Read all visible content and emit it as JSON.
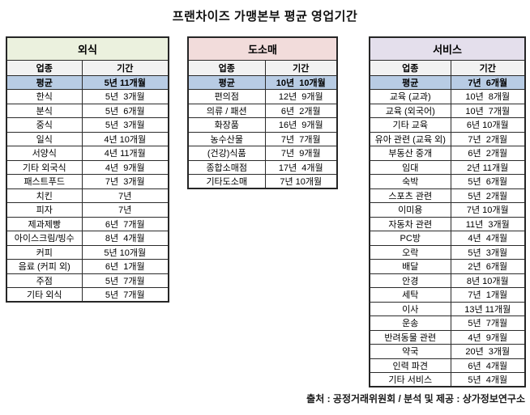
{
  "title": "프랜차이즈 가맹본부 평균 영업기간",
  "source": "출처 : 공정거래위원회 / 분석 및 제공 : 상가정보연구소",
  "colors": {
    "dining_header_bg": "#EBF1DE",
    "retail_header_bg": "#F2DCDB",
    "service_header_bg": "#E4DFEC",
    "average_row_bg": "#B8CCE4",
    "column_header_bg": "#F2F2F2",
    "border": "#262626"
  },
  "tables": [
    {
      "id": "dining",
      "title": "외식",
      "header_bg": "#EBF1DE",
      "columns": [
        "업종",
        "기간"
      ],
      "rows": [
        {
          "label": "평균",
          "period": "5년 11개월",
          "average": true
        },
        {
          "label": "한식",
          "period": "5년  3개월"
        },
        {
          "label": "분식",
          "period": "5년  6개월"
        },
        {
          "label": "중식",
          "period": "5년  3개월"
        },
        {
          "label": "일식",
          "period": "4년 10개월"
        },
        {
          "label": "서양식",
          "period": "4년 11개월"
        },
        {
          "label": "기타 외국식",
          "period": "4년  9개월"
        },
        {
          "label": "패스트푸드",
          "period": "7년  3개월"
        },
        {
          "label": "치킨",
          "period": "7년"
        },
        {
          "label": "피자",
          "period": "7년"
        },
        {
          "label": "제과제빵",
          "period": "6년  7개월"
        },
        {
          "label": "아이스크림/빙수",
          "period": "8년  4개월"
        },
        {
          "label": "커피",
          "period": "5년 10개월"
        },
        {
          "label": "음료 (커피 외)",
          "period": "6년  1개월"
        },
        {
          "label": "주점",
          "period": "5년  7개월"
        },
        {
          "label": "기타 외식",
          "period": "5년  7개월"
        }
      ]
    },
    {
      "id": "wholesale-retail",
      "title": "도소매",
      "header_bg": "#F2DCDB",
      "columns": [
        "업종",
        "기간"
      ],
      "rows": [
        {
          "label": "평균",
          "period": "10년  10개월",
          "average": true
        },
        {
          "label": "편의점",
          "period": "12년  9개월"
        },
        {
          "label": "의류 / 패션",
          "period": "6년  2개월"
        },
        {
          "label": "화장품",
          "period": "16년  9개월"
        },
        {
          "label": "농수산물",
          "period": "7년  7개월"
        },
        {
          "label": "(건강)식품",
          "period": "7년  9개월"
        },
        {
          "label": "종합소매점",
          "period": "17년  4개월"
        },
        {
          "label": "기타도소매",
          "period": "7년 10개월"
        }
      ]
    },
    {
      "id": "services",
      "title": "서비스",
      "header_bg": "#E4DFEC",
      "columns": [
        "업종",
        "기간"
      ],
      "rows": [
        {
          "label": "평균",
          "period": "7년  6개월",
          "average": true
        },
        {
          "label": "교육 (교과)",
          "period": "10년  8개월"
        },
        {
          "label": "교육 (외국어)",
          "period": "10년  7개월"
        },
        {
          "label": "기타 교육",
          "period": "6년 10개월"
        },
        {
          "label": "유아 관련 (교육 외)",
          "period": "7년  2개월"
        },
        {
          "label": "부동산 중개",
          "period": "6년  2개월"
        },
        {
          "label": "임대",
          "period": "2년 11개월"
        },
        {
          "label": "숙박",
          "period": "5년  6개월"
        },
        {
          "label": "스포츠 관련",
          "period": "5년  2개월"
        },
        {
          "label": "이미용",
          "period": "7년 10개월"
        },
        {
          "label": "자동차 관련",
          "period": "11년  3개월"
        },
        {
          "label": "PC방",
          "period": "4년  4개월"
        },
        {
          "label": "오락",
          "period": "5년  3개월"
        },
        {
          "label": "배달",
          "period": "2년  6개월"
        },
        {
          "label": "안경",
          "period": "8년 10개월"
        },
        {
          "label": "세탁",
          "period": "7년  1개월"
        },
        {
          "label": "이사",
          "period": "13년 11개월"
        },
        {
          "label": "운송",
          "period": "5년  7개월"
        },
        {
          "label": "반려동물 관련",
          "period": "4년  9개월"
        },
        {
          "label": "약국",
          "period": "20년  3개월"
        },
        {
          "label": "인력 파견",
          "period": "6년  4개월"
        },
        {
          "label": "기타 서비스",
          "period": "5년  4개월"
        }
      ]
    }
  ]
}
